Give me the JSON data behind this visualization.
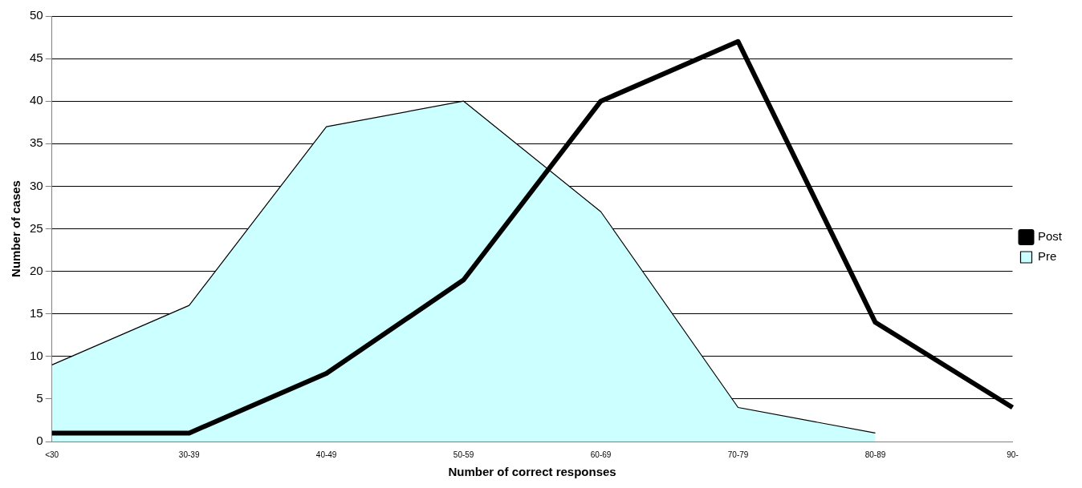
{
  "chart_data": {
    "type": "area",
    "xlabel": "Number of correct responses",
    "ylabel": "Number of cases",
    "categories": [
      "<30",
      "30-39",
      "40-49",
      "50-59",
      "60-69",
      "70-79",
      "80-89",
      "90-"
    ],
    "series": [
      {
        "name": "Pre",
        "color": "#ccffff",
        "values": [
          9,
          16,
          37,
          40,
          27,
          4,
          1,
          null
        ]
      },
      {
        "name": "Post",
        "type": "line",
        "color": "#000000",
        "values": [
          1,
          1,
          8,
          19,
          40,
          47,
          14,
          4
        ]
      }
    ],
    "ylim": [
      0,
      50
    ],
    "yticks": [
      0,
      5,
      10,
      15,
      20,
      25,
      30,
      35,
      40,
      45,
      50
    ],
    "grid": "y",
    "legend": "right",
    "marker": "none"
  }
}
